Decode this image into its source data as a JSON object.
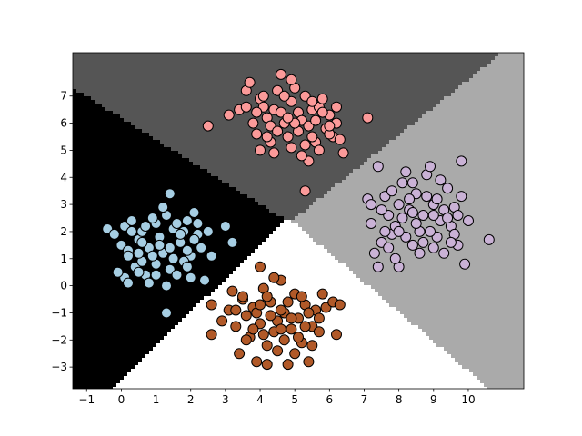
{
  "chart_data": {
    "type": "scatter",
    "title": "",
    "xlabel": "",
    "ylabel": "",
    "xlim": [
      -1.4,
      11.6
    ],
    "ylim": [
      -3.8,
      8.6
    ],
    "xticks": [
      -1,
      0,
      1,
      2,
      3,
      4,
      5,
      6,
      7,
      8,
      9,
      10
    ],
    "yticks": [
      -3,
      -2,
      -1,
      0,
      1,
      2,
      3,
      4,
      5,
      6,
      7
    ],
    "grid": false,
    "legend": "none",
    "background_regions": [
      {
        "cluster": "light-blue",
        "fill": "#000000"
      },
      {
        "cluster": "salmon",
        "fill": "#555555"
      },
      {
        "cluster": "lavender",
        "fill": "#aaaaaa"
      },
      {
        "cluster": "brown",
        "fill": "#ffffff"
      }
    ],
    "series": [
      {
        "color": "#a6cee3",
        "points": [
          [
            -0.4,
            2.1
          ],
          [
            -0.2,
            1.9
          ],
          [
            0.0,
            1.5
          ],
          [
            0.1,
            2.2
          ],
          [
            0.3,
            2.0
          ],
          [
            0.2,
            1.3
          ],
          [
            0.5,
            1.7
          ],
          [
            0.6,
            2.0
          ],
          [
            0.8,
            1.4
          ],
          [
            1.0,
            2.3
          ],
          [
            1.1,
            1.8
          ],
          [
            1.3,
            2.6
          ],
          [
            1.2,
            1.2
          ],
          [
            1.5,
            2.1
          ],
          [
            1.7,
            1.6
          ],
          [
            1.9,
            2.4
          ],
          [
            2.0,
            1.1
          ],
          [
            2.2,
            1.9
          ],
          [
            1.8,
            0.9
          ],
          [
            1.4,
            0.6
          ],
          [
            1.0,
            0.8
          ],
          [
            0.7,
            0.4
          ],
          [
            0.4,
            0.7
          ],
          [
            0.1,
            0.3
          ],
          [
            -0.1,
            0.5
          ],
          [
            0.2,
            0.1
          ],
          [
            0.6,
            0.9
          ],
          [
            0.9,
            1.1
          ],
          [
            1.6,
            0.4
          ],
          [
            2.3,
            1.4
          ],
          [
            2.5,
            2.0
          ],
          [
            1.3,
            0.0
          ],
          [
            0.8,
            0.1
          ],
          [
            2.0,
            0.3
          ],
          [
            2.4,
            0.2
          ],
          [
            1.2,
            2.9
          ],
          [
            1.4,
            3.4
          ],
          [
            1.6,
            2.3
          ],
          [
            2.1,
            2.7
          ],
          [
            0.3,
            2.4
          ],
          [
            0.5,
            1.2
          ],
          [
            0.7,
            2.2
          ],
          [
            1.9,
            1.3
          ],
          [
            2.6,
            1.1
          ],
          [
            3.0,
            2.2
          ],
          [
            3.2,
            1.6
          ],
          [
            1.3,
            -1.0
          ],
          [
            0.5,
            0.5
          ],
          [
            1.1,
            1.5
          ],
          [
            1.8,
            2.0
          ],
          [
            2.2,
            2.3
          ],
          [
            0.9,
            2.5
          ],
          [
            1.5,
            1.0
          ],
          [
            1.7,
            1.9
          ],
          [
            2.1,
            1.7
          ],
          [
            0.6,
            1.6
          ],
          [
            1.0,
            0.4
          ],
          [
            1.9,
            0.7
          ],
          [
            1.4,
            1.4
          ],
          [
            0.2,
            1.1
          ]
        ]
      },
      {
        "color": "#fb9a99",
        "points": [
          [
            2.5,
            5.9
          ],
          [
            3.1,
            6.3
          ],
          [
            3.4,
            6.5
          ],
          [
            3.6,
            7.2
          ],
          [
            3.7,
            7.5
          ],
          [
            3.8,
            6.0
          ],
          [
            3.9,
            5.6
          ],
          [
            4.0,
            6.9
          ],
          [
            4.1,
            7.0
          ],
          [
            4.2,
            6.2
          ],
          [
            4.3,
            5.3
          ],
          [
            4.4,
            6.5
          ],
          [
            4.5,
            7.2
          ],
          [
            4.6,
            7.8
          ],
          [
            4.7,
            6.0
          ],
          [
            4.8,
            5.5
          ],
          [
            4.9,
            6.8
          ],
          [
            5.0,
            7.3
          ],
          [
            5.1,
            6.4
          ],
          [
            5.2,
            6.1
          ],
          [
            5.3,
            7.0
          ],
          [
            5.4,
            5.9
          ],
          [
            5.5,
            6.5
          ],
          [
            5.6,
            5.3
          ],
          [
            5.7,
            6.6
          ],
          [
            5.8,
            6.9
          ],
          [
            5.9,
            5.8
          ],
          [
            6.0,
            6.3
          ],
          [
            6.1,
            5.5
          ],
          [
            6.2,
            6.0
          ],
          [
            6.3,
            5.4
          ],
          [
            6.4,
            4.9
          ],
          [
            7.1,
            6.2
          ],
          [
            5.3,
            3.5
          ],
          [
            5.4,
            4.6
          ],
          [
            4.0,
            5.0
          ],
          [
            4.3,
            5.9
          ],
          [
            4.6,
            6.4
          ],
          [
            4.9,
            5.1
          ],
          [
            5.1,
            5.7
          ],
          [
            5.5,
            6.8
          ],
          [
            5.7,
            5.0
          ],
          [
            6.0,
            5.6
          ],
          [
            6.2,
            6.6
          ],
          [
            4.1,
            6.6
          ],
          [
            4.4,
            4.9
          ],
          [
            4.7,
            7.0
          ],
          [
            5.0,
            6.0
          ],
          [
            5.2,
            4.8
          ],
          [
            5.8,
            6.4
          ],
          [
            3.6,
            6.6
          ],
          [
            3.9,
            6.4
          ],
          [
            4.5,
            5.7
          ],
          [
            4.8,
            6.2
          ],
          [
            5.3,
            5.2
          ],
          [
            5.6,
            6.1
          ],
          [
            6.0,
            5.9
          ],
          [
            4.2,
            5.5
          ],
          [
            4.9,
            7.6
          ],
          [
            5.5,
            5.5
          ]
        ]
      },
      {
        "color": "#cab2d6",
        "points": [
          [
            7.1,
            3.2
          ],
          [
            7.2,
            2.3
          ],
          [
            7.3,
            1.2
          ],
          [
            7.4,
            0.7
          ],
          [
            7.5,
            1.6
          ],
          [
            7.4,
            4.4
          ],
          [
            7.6,
            3.3
          ],
          [
            7.7,
            2.6
          ],
          [
            7.8,
            1.9
          ],
          [
            7.9,
            2.2
          ],
          [
            8.0,
            3.0
          ],
          [
            8.1,
            3.8
          ],
          [
            8.0,
            0.7
          ],
          [
            8.2,
            4.2
          ],
          [
            8.3,
            2.8
          ],
          [
            8.4,
            1.5
          ],
          [
            8.5,
            3.4
          ],
          [
            8.6,
            2.0
          ],
          [
            8.7,
            2.6
          ],
          [
            8.8,
            4.1
          ],
          [
            8.9,
            4.4
          ],
          [
            9.0,
            3.0
          ],
          [
            9.1,
            1.8
          ],
          [
            9.2,
            2.4
          ],
          [
            9.3,
            1.2
          ],
          [
            9.4,
            3.6
          ],
          [
            9.5,
            2.2
          ],
          [
            9.6,
            2.9
          ],
          [
            9.7,
            1.5
          ],
          [
            9.8,
            4.6
          ],
          [
            9.9,
            0.8
          ],
          [
            10.0,
            2.4
          ],
          [
            10.6,
            1.7
          ],
          [
            7.2,
            3.0
          ],
          [
            7.6,
            2.0
          ],
          [
            7.9,
            1.0
          ],
          [
            8.2,
            1.8
          ],
          [
            8.4,
            3.8
          ],
          [
            8.6,
            1.2
          ],
          [
            8.9,
            2.0
          ],
          [
            9.1,
            3.2
          ],
          [
            9.3,
            2.8
          ],
          [
            9.6,
            1.9
          ],
          [
            9.8,
            3.3
          ],
          [
            8.1,
            2.5
          ],
          [
            8.5,
            2.3
          ],
          [
            8.8,
            3.3
          ],
          [
            9.0,
            1.4
          ],
          [
            9.4,
            2.5
          ],
          [
            7.5,
            2.8
          ],
          [
            7.8,
            3.5
          ],
          [
            8.3,
            3.2
          ],
          [
            8.7,
            1.6
          ],
          [
            9.2,
            3.9
          ],
          [
            9.5,
            1.6
          ],
          [
            7.7,
            1.4
          ],
          [
            8.0,
            2.0
          ],
          [
            8.4,
            2.7
          ],
          [
            9.0,
            2.6
          ],
          [
            9.7,
            2.6
          ]
        ]
      },
      {
        "color": "#b15928",
        "points": [
          [
            2.6,
            -0.7
          ],
          [
            2.6,
            -1.8
          ],
          [
            2.9,
            -1.3
          ],
          [
            3.1,
            -0.9
          ],
          [
            3.2,
            -0.2
          ],
          [
            3.3,
            -1.5
          ],
          [
            3.4,
            -2.5
          ],
          [
            3.5,
            -0.5
          ],
          [
            3.6,
            -1.1
          ],
          [
            3.7,
            -1.9
          ],
          [
            3.8,
            -0.8
          ],
          [
            3.9,
            -2.8
          ],
          [
            4.0,
            -1.4
          ],
          [
            4.0,
            0.7
          ],
          [
            4.1,
            -0.1
          ],
          [
            4.2,
            -2.2
          ],
          [
            4.3,
            -0.6
          ],
          [
            4.4,
            -1.7
          ],
          [
            4.5,
            -2.4
          ],
          [
            4.6,
            0.2
          ],
          [
            4.7,
            -1.0
          ],
          [
            4.8,
            -2.9
          ],
          [
            4.9,
            -1.6
          ],
          [
            5.0,
            -0.3
          ],
          [
            5.1,
            -1.2
          ],
          [
            5.2,
            -2.1
          ],
          [
            5.3,
            -0.7
          ],
          [
            5.4,
            -2.8
          ],
          [
            5.5,
            -1.5
          ],
          [
            5.6,
            -0.9
          ],
          [
            5.7,
            -1.2
          ],
          [
            5.8,
            -0.3
          ],
          [
            5.9,
            -0.8
          ],
          [
            6.1,
            -0.6
          ],
          [
            6.2,
            -1.8
          ],
          [
            6.3,
            -0.7
          ],
          [
            3.5,
            -0.4
          ],
          [
            3.9,
            -1.0
          ],
          [
            4.2,
            -0.4
          ],
          [
            4.5,
            -1.3
          ],
          [
            4.8,
            -0.6
          ],
          [
            5.1,
            -1.9
          ],
          [
            5.4,
            -1.0
          ],
          [
            4.1,
            -1.8
          ],
          [
            4.4,
            0.3
          ],
          [
            4.7,
            -2.0
          ],
          [
            5.0,
            -2.5
          ],
          [
            3.8,
            -1.6
          ],
          [
            4.3,
            -1.1
          ],
          [
            4.6,
            -0.9
          ],
          [
            4.9,
            -1.2
          ],
          [
            5.2,
            -0.4
          ],
          [
            5.5,
            -2.2
          ],
          [
            3.6,
            -2.0
          ],
          [
            4.0,
            -0.7
          ],
          [
            4.6,
            -1.6
          ],
          [
            5.3,
            -1.5
          ],
          [
            4.2,
            -2.9
          ],
          [
            3.3,
            -0.9
          ],
          [
            5.7,
            -1.7
          ]
        ]
      }
    ]
  }
}
